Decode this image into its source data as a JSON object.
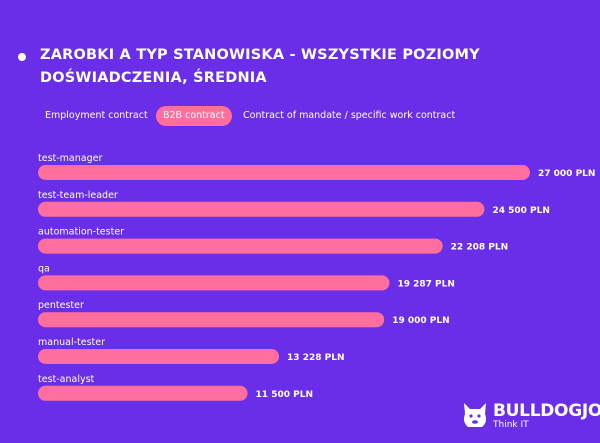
{
  "title": "ZAROBKI A TYP STANOWISKA - WSZYSTKIE POZIOMY DOŚWIADCZENIA, ŚREDNIA",
  "tabs": [
    {
      "label": "Employment contract",
      "active": false
    },
    {
      "label": "B2B contract",
      "active": true
    },
    {
      "label": "Contract of mandate / specific work contract",
      "active": false
    }
  ],
  "colors": {
    "background": "#6a2ee8",
    "bar": "#ff6e9d",
    "text": "#ffffff"
  },
  "chart_data": {
    "type": "bar",
    "orientation": "horizontal",
    "title": "ZAROBKI A TYP STANOWISKA - WSZYSTKIE POZIOMY DOŚWIADCZENIA, ŚREDNIA",
    "categories": [
      "test-manager",
      "test-team-leader",
      "automation-tester",
      "qa",
      "pentester",
      "manual-tester",
      "test-analyst"
    ],
    "values": [
      27000,
      24500,
      22208,
      19287,
      19000,
      13228,
      11500
    ],
    "value_labels": [
      "27 000 PLN",
      "24 500 PLN",
      "22 208 PLN",
      "19 287 PLN",
      "19 000 PLN",
      "13 228 PLN",
      "11 500 PLN"
    ],
    "unit": "PLN",
    "grid": false,
    "legend": "none"
  },
  "logo": {
    "name": "BULLDOGJOB",
    "tagline": "Think IT",
    "icon": "bulldog-icon"
  }
}
